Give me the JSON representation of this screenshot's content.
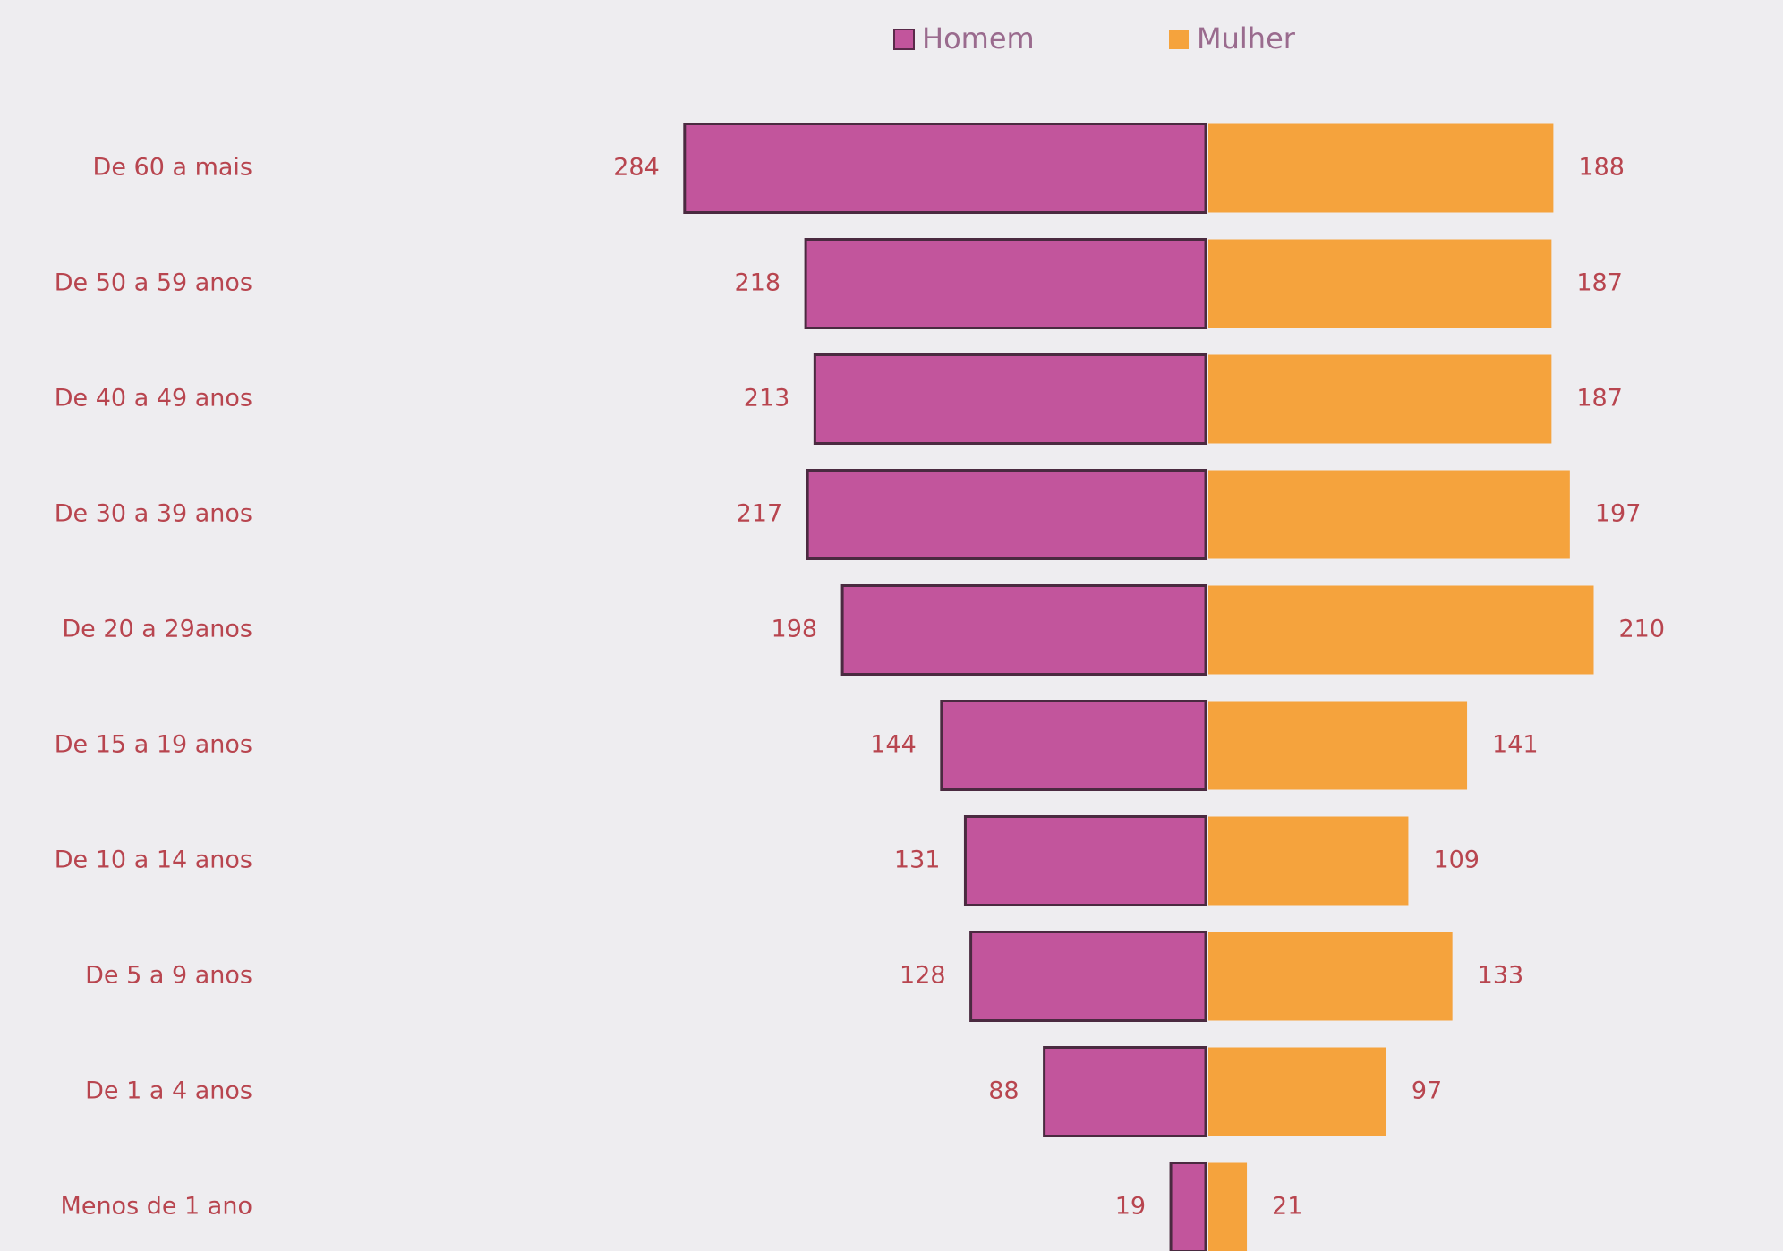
{
  "chart_data": {
    "type": "bar",
    "categories": [
      "De 60 a mais",
      "De 50 a 59 anos",
      "De 40 a 49 anos",
      "De 30 a 39 anos",
      "De 20 a 29anos",
      "De 15 a 19 anos",
      "De 10 a 14 anos",
      "De 5 a 9 anos",
      "De 1 a 4 anos",
      "Menos de 1 ano"
    ],
    "series": [
      {
        "name": "Homem",
        "color": "#c2559c",
        "values": [
          284,
          218,
          213,
          217,
          198,
          144,
          131,
          128,
          88,
          19
        ]
      },
      {
        "name": "Mulher",
        "color": "#f5a33d",
        "values": [
          188,
          187,
          187,
          197,
          210,
          141,
          109,
          133,
          97,
          21
        ]
      }
    ]
  }
}
